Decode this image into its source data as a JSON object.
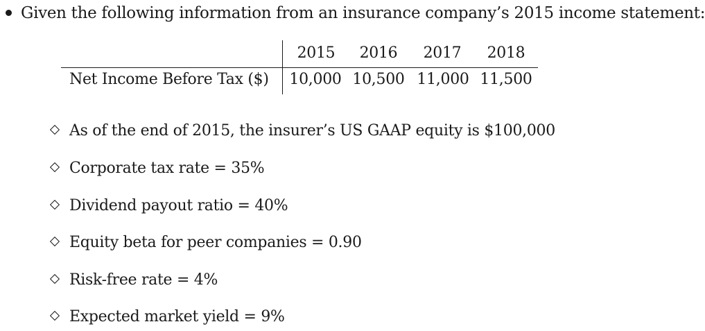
{
  "intro": "Given the following information from an insurance company’s 2015 income statement:",
  "table": {
    "years": [
      "2015",
      "2016",
      "2017",
      "2018"
    ],
    "row_label": "Net Income Before Tax ($)",
    "values": [
      "10,000",
      "10,500",
      "11,000",
      "11,500"
    ]
  },
  "items": [
    "As of the end of 2015, the insurer’s US GAAP equity is $100,000",
    "Corporate tax rate = 35%",
    "Dividend payout ratio = 40%",
    "Equity beta for peer companies = 0.90",
    "Risk-free rate = 4%",
    "Expected market yield = 9%"
  ]
}
